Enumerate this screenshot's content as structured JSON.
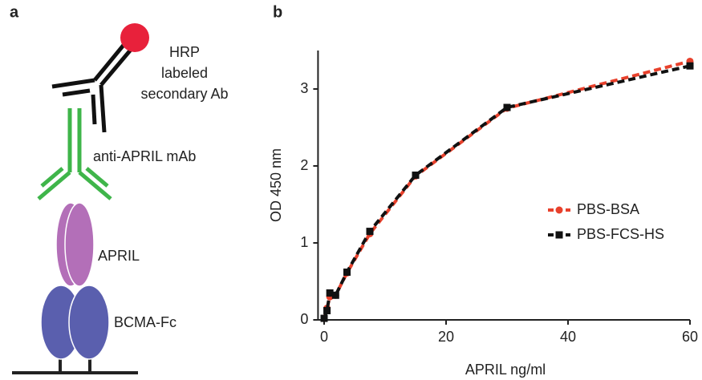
{
  "panels": [
    "a",
    "b"
  ],
  "diagram": {
    "hrp_label": [
      "HRP",
      "labeled",
      "secondary Ab"
    ],
    "mab_label": "anti-APRIL mAb",
    "april_label": "APRIL",
    "bcma_label": "BCMA-Fc"
  },
  "chart_data": {
    "type": "line",
    "xlabel": "APRIL ng/ml",
    "ylabel": "OD 450 nm",
    "x": [
      0,
      0.47,
      0.94,
      1.88,
      3.75,
      7.5,
      15,
      30,
      60
    ],
    "series": [
      {
        "name": "PBS-BSA",
        "color": "#e8412c",
        "marker": "circle",
        "values": [
          0.02,
          0.15,
          0.3,
          0.32,
          0.61,
          1.12,
          1.87,
          2.75,
          3.36
        ]
      },
      {
        "name": "PBS-FCS-HS",
        "color": "#111111",
        "marker": "square",
        "values": [
          0.02,
          0.12,
          0.35,
          0.32,
          0.62,
          1.15,
          1.88,
          2.76,
          3.3
        ]
      }
    ],
    "xlim": [
      -1,
      60
    ],
    "ylim": [
      0,
      3.5
    ],
    "xticks": [
      0,
      20,
      40,
      60
    ],
    "yticks": [
      0,
      1,
      2,
      3
    ],
    "legend": "right"
  }
}
